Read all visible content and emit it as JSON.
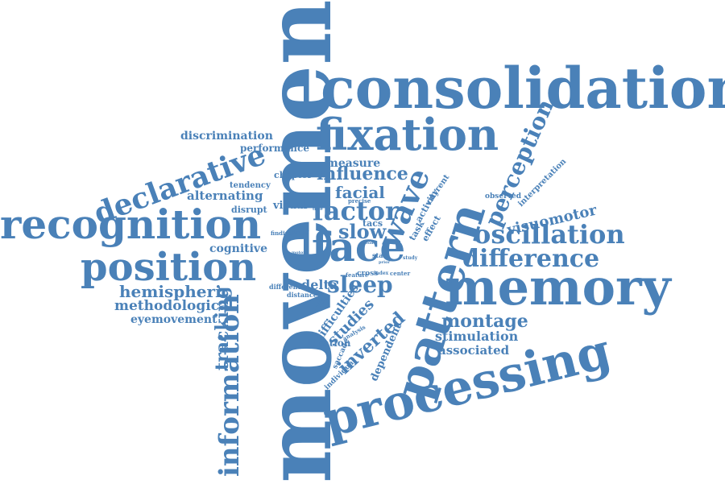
{
  "color": "#4a81b8",
  "words": [
    {
      "id": "movement",
      "text": "movement"
    },
    {
      "id": "consolidation",
      "text": "consolidation"
    },
    {
      "id": "memory",
      "text": "memory"
    },
    {
      "id": "processing",
      "text": "processing"
    },
    {
      "id": "pattern",
      "text": "pattern"
    },
    {
      "id": "recognition",
      "text": "recognition"
    },
    {
      "id": "position",
      "text": "position"
    },
    {
      "id": "fixation",
      "text": "fixation"
    },
    {
      "id": "face",
      "text": "face"
    },
    {
      "id": "declarative",
      "text": "declarative"
    },
    {
      "id": "information",
      "text": "information"
    },
    {
      "id": "oscillation",
      "text": "oscillation"
    },
    {
      "id": "difference",
      "text": "difference"
    },
    {
      "id": "wave",
      "text": "wave"
    },
    {
      "id": "factor",
      "text": "factor"
    },
    {
      "id": "sleep",
      "text": "sleep"
    },
    {
      "id": "perception",
      "text": "perception"
    },
    {
      "id": "montage",
      "text": "montage"
    },
    {
      "id": "slow",
      "text": "slow"
    },
    {
      "id": "influence",
      "text": "influence"
    },
    {
      "id": "facial",
      "text": "facial"
    },
    {
      "id": "tracking",
      "text": "tracking"
    },
    {
      "id": "visuomotor",
      "text": "visuomotor"
    },
    {
      "id": "hemispheric",
      "text": "hemispheric"
    },
    {
      "id": "methodological",
      "text": "methodological"
    },
    {
      "id": "eyemovement",
      "text": "eyemovement"
    },
    {
      "id": "alternating",
      "text": "alternating"
    },
    {
      "id": "stimulation",
      "text": "stimulation"
    },
    {
      "id": "associated",
      "text": "associated"
    },
    {
      "id": "inverted",
      "text": "inverted"
    },
    {
      "id": "studies",
      "text": "studies"
    },
    {
      "id": "delta",
      "text": "delta"
    },
    {
      "id": "measure",
      "text": "measure"
    },
    {
      "id": "discrimination",
      "text": "discrimination"
    },
    {
      "id": "performance",
      "text": "performance"
    },
    {
      "id": "cognitive",
      "text": "cognitive"
    },
    {
      "id": "visual",
      "text": "visual"
    },
    {
      "id": "chapter",
      "text": "chapter"
    },
    {
      "id": "tendency",
      "text": "tendency"
    },
    {
      "id": "disrupt",
      "text": "disrupt"
    },
    {
      "id": "dependent",
      "text": "dependent"
    },
    {
      "id": "difficulties",
      "text": "difficulties"
    },
    {
      "id": "location",
      "text": "location"
    },
    {
      "id": "interpretation",
      "text": "interpretation"
    },
    {
      "id": "current",
      "text": "current"
    },
    {
      "id": "activity",
      "text": "activity"
    },
    {
      "id": "observed",
      "text": "observed"
    },
    {
      "id": "task",
      "text": "task"
    },
    {
      "id": "effect",
      "text": "effect"
    },
    {
      "id": "tacs",
      "text": "tacs"
    },
    {
      "id": "precise",
      "text": "precise"
    },
    {
      "id": "finding",
      "text": "finding"
    },
    {
      "id": "strong",
      "text": "strong"
    },
    {
      "id": "cross",
      "text": "cross"
    },
    {
      "id": "index",
      "text": "index"
    },
    {
      "id": "center",
      "text": "center"
    },
    {
      "id": "feature",
      "text": "feature"
    },
    {
      "id": "different",
      "text": "different"
    },
    {
      "id": "distance",
      "text": "distance"
    },
    {
      "id": "initial",
      "text": "initial"
    },
    {
      "id": "analysis",
      "text": "analysis"
    },
    {
      "id": "saccade",
      "text": "saccade"
    },
    {
      "id": "individual",
      "text": "individual"
    },
    {
      "id": "start",
      "text": "start"
    },
    {
      "id": "study",
      "text": "study"
    },
    {
      "id": "prior",
      "text": "prior"
    },
    {
      "id": "good",
      "text": "good"
    },
    {
      "id": "motor",
      "text": "motor"
    },
    {
      "id": "time",
      "text": "time"
    }
  ]
}
